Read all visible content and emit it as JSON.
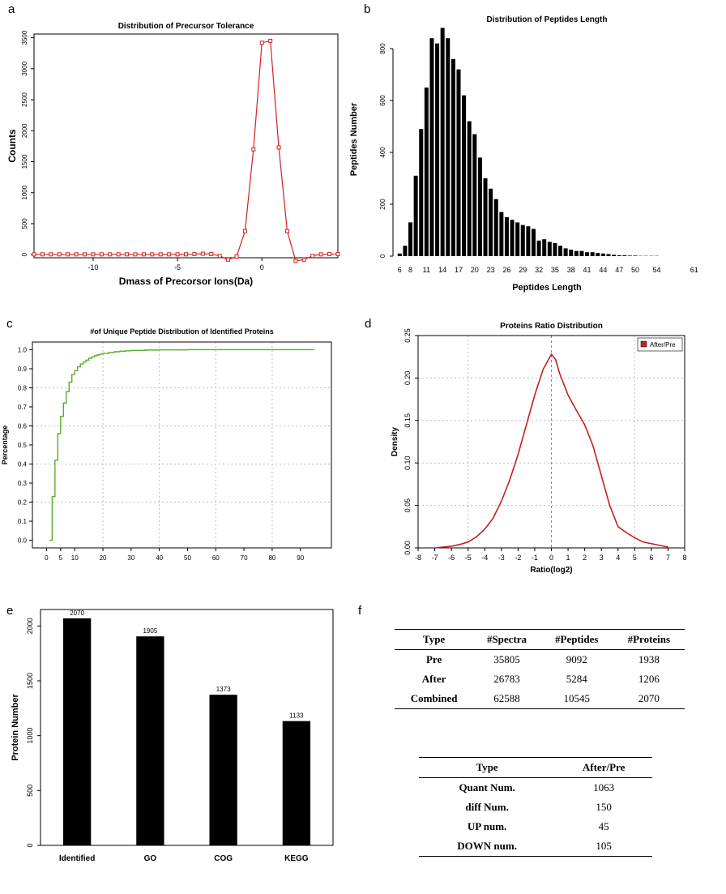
{
  "panels": {
    "a": "a",
    "b": "b",
    "c": "c",
    "d": "d",
    "e": "e",
    "f": "f"
  },
  "chart_data": [
    {
      "id": "a",
      "type": "line",
      "title": "Distribution of Precursor Tolerance",
      "xlabel": "Dmass of Precorsor Ions(Da)",
      "ylabel": "Counts",
      "xlim": [
        -13.5,
        4.5
      ],
      "ylim": [
        -50,
        3560
      ],
      "xticks": [
        -10,
        -5,
        0
      ],
      "yticks": [
        0,
        500,
        1000,
        1500,
        2000,
        2500,
        3000,
        3500
      ],
      "color": "#d42020",
      "x": [
        -13.5,
        -13,
        -12.5,
        -12,
        -11.5,
        -11,
        -10.5,
        -10,
        -9.5,
        -9,
        -8.5,
        -8,
        -7.5,
        -7,
        -6.5,
        -6,
        -5.5,
        -5,
        -4.5,
        -4,
        -3.5,
        -3,
        -2.5,
        -2,
        -1.5,
        -1,
        -0.5,
        0,
        0.5,
        1,
        1.5,
        2,
        2.5,
        3,
        3.5,
        4,
        4.5
      ],
      "y": [
        5,
        5,
        5,
        5,
        5,
        5,
        5,
        5,
        5,
        5,
        5,
        5,
        5,
        5,
        5,
        5,
        5,
        5,
        5,
        10,
        15,
        10,
        -20,
        -80,
        -30,
        380,
        1700,
        3420,
        3450,
        1730,
        380,
        -100,
        -80,
        -20,
        5,
        10,
        10
      ]
    },
    {
      "id": "b",
      "type": "bar",
      "title": "Distribution of Peptides Length",
      "xlabel": "Peptides Length",
      "ylabel": "Peptides Number",
      "ylim": [
        0,
        900
      ],
      "yticks": [
        0,
        200,
        400,
        600,
        800
      ],
      "xticks": [
        "6",
        "8",
        "11",
        "14",
        "17",
        "20",
        "23",
        "26",
        "29",
        "32",
        "35",
        "38",
        "41",
        "44",
        "47",
        "50",
        "54",
        "61"
      ],
      "categories": [
        "6",
        "7",
        "8",
        "9",
        "10",
        "11",
        "12",
        "13",
        "14",
        "15",
        "16",
        "17",
        "18",
        "19",
        "20",
        "21",
        "22",
        "23",
        "24",
        "25",
        "26",
        "27",
        "28",
        "29",
        "30",
        "31",
        "32",
        "33",
        "34",
        "35",
        "36",
        "37",
        "38",
        "39",
        "40",
        "41",
        "42",
        "43",
        "44",
        "45",
        "46",
        "47",
        "48",
        "49",
        "50",
        "51",
        "52",
        "53",
        "54",
        "55",
        "56",
        "57",
        "58",
        "59",
        "60",
        "61"
      ],
      "values": [
        10,
        40,
        130,
        310,
        490,
        650,
        840,
        820,
        880,
        840,
        760,
        720,
        620,
        520,
        470,
        380,
        300,
        260,
        220,
        170,
        150,
        140,
        130,
        120,
        115,
        105,
        60,
        65,
        55,
        50,
        40,
        30,
        25,
        20,
        20,
        15,
        15,
        12,
        10,
        8,
        5,
        3,
        3,
        2,
        2,
        1,
        1,
        1,
        1,
        0,
        0,
        0,
        0,
        0,
        0,
        0
      ]
    },
    {
      "id": "c",
      "type": "line",
      "title": "#of Unique Peptide Distribution of Identified Proteins",
      "xlabel": "",
      "ylabel": "Percentage",
      "xlim": [
        -5,
        101
      ],
      "ylim": [
        -0.04,
        1.04
      ],
      "xticks": [
        0,
        5,
        10,
        20,
        30,
        40,
        50,
        60,
        70,
        80,
        90
      ],
      "yticks": [
        0.0,
        0.1,
        0.2,
        0.3,
        0.4,
        0.5,
        0.6,
        0.7,
        0.8,
        0.9,
        1.0
      ],
      "color": "#5aac2c",
      "x": [
        1,
        2,
        3,
        4,
        5,
        6,
        7,
        8,
        9,
        10,
        11,
        12,
        13,
        14,
        15,
        16,
        17,
        18,
        19,
        20,
        22,
        24,
        26,
        28,
        30,
        35,
        40,
        50,
        60,
        70,
        80,
        90,
        95
      ],
      "y": [
        0.0,
        0.23,
        0.42,
        0.56,
        0.65,
        0.72,
        0.78,
        0.83,
        0.87,
        0.89,
        0.91,
        0.925,
        0.935,
        0.945,
        0.955,
        0.962,
        0.968,
        0.973,
        0.977,
        0.98,
        0.985,
        0.989,
        0.992,
        0.994,
        0.996,
        0.998,
        0.999,
        1.0,
        1.0,
        1.0,
        1.0,
        1.0,
        1.0
      ]
    },
    {
      "id": "d",
      "type": "line",
      "title": "Proteins Ratio Distribution",
      "xlabel": "Ratio(log2)",
      "ylabel": "Density",
      "xlim": [
        -8,
        8
      ],
      "ylim": [
        0,
        0.25
      ],
      "xticks": [
        -8,
        -7,
        -6,
        -5,
        -4,
        -3,
        -2,
        -1,
        0,
        1,
        2,
        3,
        4,
        5,
        6,
        7,
        8
      ],
      "yticks": [
        0.0,
        0.05,
        0.1,
        0.15,
        0.2,
        0.25
      ],
      "color": "#c81e1e",
      "legend": "After/Pre",
      "legend_position": "top-right",
      "x": [
        -7,
        -6.5,
        -6,
        -5.5,
        -5,
        -4.5,
        -4,
        -3.5,
        -3,
        -2.5,
        -2,
        -1.5,
        -1,
        -0.5,
        0,
        0.25,
        0.5,
        1,
        1.5,
        2,
        2.5,
        3,
        3.5,
        4,
        4.5,
        5,
        5.5,
        6,
        6.5,
        7
      ],
      "y": [
        0,
        0.001,
        0.002,
        0.004,
        0.007,
        0.013,
        0.022,
        0.035,
        0.055,
        0.08,
        0.11,
        0.145,
        0.18,
        0.21,
        0.228,
        0.222,
        0.205,
        0.18,
        0.162,
        0.145,
        0.12,
        0.085,
        0.05,
        0.025,
        0.018,
        0.012,
        0.007,
        0.005,
        0.003,
        0.001
      ]
    },
    {
      "id": "e",
      "type": "bar",
      "title": "",
      "xlabel": "",
      "ylabel": "Protein Number",
      "ylim": [
        0,
        2150
      ],
      "yticks": [
        0,
        500,
        1000,
        1500,
        2000
      ],
      "categories": [
        "Identified",
        "GO",
        "COG",
        "KEGG"
      ],
      "values": [
        2070,
        1905,
        1373,
        1133
      ],
      "data_labels": [
        "2070",
        "1905",
        "1373",
        "1133"
      ]
    }
  ],
  "table1": {
    "headers": [
      "Type",
      "#Spectra",
      "#Peptides",
      "#Proteins"
    ],
    "rows": [
      [
        "Pre",
        "35805",
        "9092",
        "1938"
      ],
      [
        "After",
        "26783",
        "5284",
        "1206"
      ],
      [
        "Combined",
        "62588",
        "10545",
        "2070"
      ]
    ]
  },
  "table2": {
    "headers": [
      "Type",
      "After/Pre"
    ],
    "rows": [
      [
        "Quant Num.",
        "1063"
      ],
      [
        "diff Num.",
        "150"
      ],
      [
        "UP num.",
        "45"
      ],
      [
        "DOWN num.",
        "105"
      ]
    ]
  }
}
